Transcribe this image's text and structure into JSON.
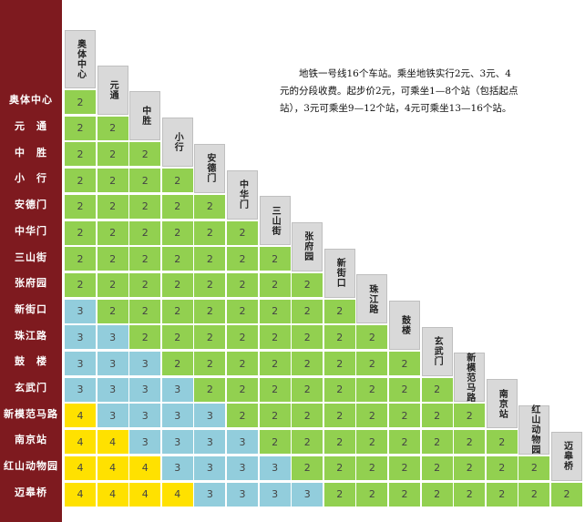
{
  "note": "地铁一号线16个车站。乘坐地铁实行2元、3元、4元的分段收费。起步价2元，可乘坐1—8个站（包括起点站），3元可乘坐9—12个站，4元可乘坐13—16个站。",
  "stations": [
    "奥体中心",
    "元通",
    "中胜",
    "小行",
    "安德门",
    "中华门",
    "三山街",
    "张府园",
    "新街口",
    "珠江路",
    "鼓楼",
    "玄武门",
    "新模范马路",
    "南京站",
    "红山动物园",
    "迈皋桥"
  ],
  "row_labels": [
    "奥体中心",
    "元　通",
    "中　胜",
    "小　行",
    "安德门",
    "中华门",
    "三山街",
    "张府园",
    "新街口",
    "珠江路",
    "鼓　楼",
    "玄武门",
    "新模范马路",
    "南京站",
    "红山动物园",
    "迈皋桥"
  ],
  "fares": [
    [
      "2"
    ],
    [
      "2",
      "2"
    ],
    [
      "2",
      "2",
      "2"
    ],
    [
      "2",
      "2",
      "2",
      "2"
    ],
    [
      "2",
      "2",
      "2",
      "2",
      "2"
    ],
    [
      "2",
      "2",
      "2",
      "2",
      "2",
      "2"
    ],
    [
      "2",
      "2",
      "2",
      "2",
      "2",
      "2",
      "2"
    ],
    [
      "2",
      "2",
      "2",
      "2",
      "2",
      "2",
      "2",
      "2"
    ],
    [
      "3",
      "2",
      "2",
      "2",
      "2",
      "2",
      "2",
      "2",
      "2"
    ],
    [
      "3",
      "3",
      "2",
      "2",
      "2",
      "2",
      "2",
      "2",
      "2",
      "2"
    ],
    [
      "3",
      "3",
      "3",
      "2",
      "2",
      "2",
      "2",
      "2",
      "2",
      "2",
      "2"
    ],
    [
      "3",
      "3",
      "3",
      "3",
      "2",
      "2",
      "2",
      "2",
      "2",
      "2",
      "2",
      "2"
    ],
    [
      "4",
      "3",
      "3",
      "3",
      "3",
      "2",
      "2",
      "2",
      "2",
      "2",
      "2",
      "2",
      "2"
    ],
    [
      "4",
      "4",
      "3",
      "3",
      "3",
      "3",
      "2",
      "2",
      "2",
      "2",
      "2",
      "2",
      "2",
      "2"
    ],
    [
      "4",
      "4",
      "4",
      "3",
      "3",
      "3",
      "3",
      "2",
      "2",
      "2",
      "2",
      "2",
      "2",
      "2",
      "2"
    ],
    [
      "4",
      "4",
      "4",
      "4",
      "3",
      "3",
      "3",
      "3",
      "2",
      "2",
      "2",
      "2",
      "2",
      "2",
      "2",
      "2"
    ]
  ],
  "colors": {
    "fare_2": "#92d050",
    "fare_3": "#92cddc",
    "fare_4": "#ffe100",
    "sidebar": "#7e1a1f",
    "header": "#d9d9d9"
  }
}
